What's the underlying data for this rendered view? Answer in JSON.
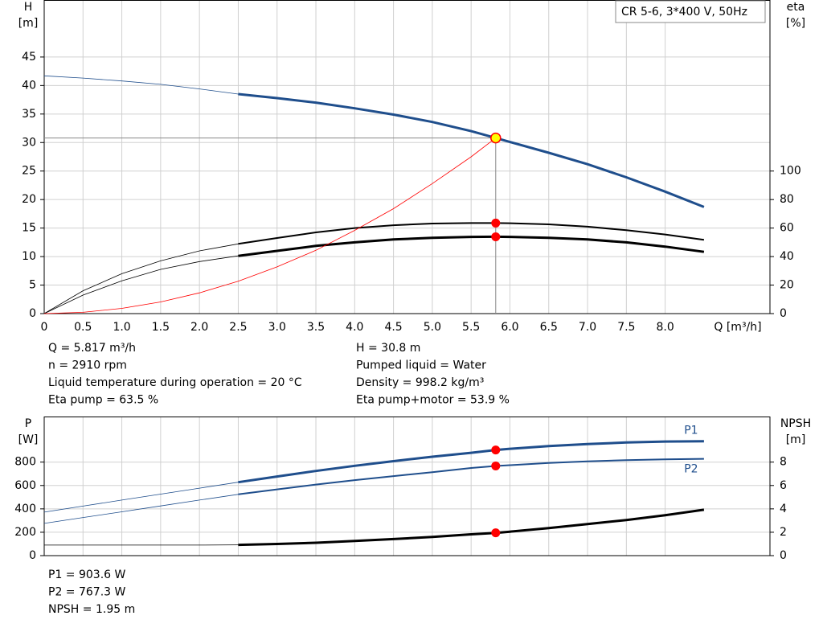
{
  "chart_data": [
    {
      "type": "line",
      "title": "CR 5-6, 3*400 V, 50Hz",
      "ylabel": "H",
      "yunit": "[m]",
      "y2label": "eta",
      "y2unit": "[%]",
      "xlabel": "Q [m³/h]",
      "x": [
        0,
        0.5,
        1.0,
        1.5,
        2.0,
        2.5,
        3.0,
        3.5,
        4.0,
        4.5,
        5.0,
        5.5,
        5.817,
        6.0,
        6.5,
        7.0,
        7.5,
        8.0,
        8.5
      ],
      "xlim": [
        0,
        9.35
      ],
      "xticks": [
        0,
        0.5,
        {
          "value": 1,
          "label": "1.0"
        },
        1.5,
        {
          "value": 2,
          "label": "2.0"
        },
        2.5,
        {
          "value": 3,
          "label": "3.0"
        },
        3.5,
        {
          "value": 4,
          "label": "4.0"
        },
        4.5,
        {
          "value": 5,
          "label": "5.0"
        },
        5.5,
        {
          "value": 6,
          "label": "6.0"
        },
        6.5,
        {
          "value": 7,
          "label": "7.0"
        },
        7.5,
        {
          "value": 8,
          "label": "8.0"
        }
      ],
      "ylim": [
        0,
        55
      ],
      "yticks": [
        0,
        5,
        10,
        15,
        20,
        25,
        30,
        35,
        40,
        45
      ],
      "y2lim": [
        0,
        220
      ],
      "y2ticks": [
        0,
        20,
        40,
        60,
        80,
        100
      ],
      "grid": true,
      "thin_below_x": 2.5,
      "operating_point": {
        "x": 5.817,
        "y": 30.8
      },
      "series": [
        {
          "color": "#1f4e8c",
          "width": 3,
          "marker": false,
          "axis": "y",
          "values": [
            41.7,
            41.3,
            40.8,
            40.2,
            39.4,
            38.5,
            37.8,
            37.0,
            36.0,
            34.9,
            33.6,
            32.0,
            30.8,
            30.1,
            28.2,
            26.2,
            23.9,
            21.4,
            18.7
          ]
        },
        {
          "color": "#000000",
          "width": 2,
          "marker": true,
          "axis": "y2",
          "values": [
            0,
            16,
            28,
            37,
            44,
            48.9,
            53,
            57,
            60,
            62,
            63.2,
            63.5,
            63.5,
            63.4,
            62.6,
            61,
            58.5,
            55.5,
            51.8
          ]
        },
        {
          "color": "#000000",
          "width": 3,
          "marker": true,
          "axis": "y2",
          "values": [
            0,
            13,
            23,
            31,
            36.5,
            40.5,
            44,
            47.5,
            50,
            52,
            53.2,
            53.8,
            53.9,
            53.8,
            53.2,
            52,
            50,
            47,
            43.3
          ]
        },
        {
          "color": "#ff0000",
          "width": 0.8,
          "marker": false,
          "axis": "y",
          "thin_all": true,
          "values": [
            0,
            0.23,
            0.91,
            2.05,
            3.64,
            5.69,
            8.19,
            11.1,
            14.6,
            18.4,
            22.8,
            27.5,
            30.8,
            null,
            null,
            null,
            null,
            null,
            null
          ]
        }
      ],
      "info": [
        "Q = 5.817 m³/h",
        "n = 2910 rpm",
        "Liquid temperature during operation = 20 °C",
        "Eta pump = 63.5 %",
        "H = 30.8 m",
        "Pumped liquid = Water",
        "Density = 998.2 kg/m³",
        "Eta pump+motor = 53.9 %"
      ]
    },
    {
      "type": "line",
      "ylabel": "P",
      "yunit": "[W]",
      "y2label": "NPSH",
      "y2unit": "[m]",
      "x": [
        0,
        0.5,
        1.0,
        1.5,
        2.0,
        2.5,
        3.0,
        3.5,
        4.0,
        4.5,
        5.0,
        5.5,
        5.817,
        6.0,
        6.5,
        7.0,
        7.5,
        8.0,
        8.5
      ],
      "xlim": [
        0,
        9.35
      ],
      "xticks": [
        0,
        0.5,
        1,
        1.5,
        2,
        2.5,
        3,
        3.5,
        4,
        4.5,
        5,
        5.5,
        6,
        6.5,
        7,
        7.5,
        8
      ],
      "ylim": [
        0,
        1190
      ],
      "yticks": [
        0,
        200,
        400,
        600,
        800
      ],
      "y2lim": [
        0,
        11.9
      ],
      "y2ticks": [
        0,
        2,
        4,
        6,
        8
      ],
      "grid": true,
      "thin_below_x": 2.5,
      "operating_point": {
        "x": 5.817
      },
      "series": [
        {
          "name": "P1",
          "color": "#1f4e8c",
          "width": 3,
          "marker": true,
          "axis": "y",
          "label_side": "above",
          "values": [
            372,
            424,
            475,
            526,
            577,
            628,
            677,
            724,
            768,
            808,
            846,
            880,
            903.6,
            914,
            937,
            955,
            968,
            976,
            979
          ]
        },
        {
          "name": "P2",
          "color": "#1f4e8c",
          "width": 2,
          "marker": true,
          "axis": "y",
          "label_side": "below",
          "values": [
            276,
            326,
            375,
            425,
            475,
            524,
            567,
            608,
            646,
            680,
            713,
            750,
            767.3,
            774,
            793,
            807,
            817,
            824,
            828
          ]
        },
        {
          "color": "#000000",
          "width": 3,
          "marker": true,
          "axis": "y2",
          "values": [
            0.9,
            0.9,
            0.9,
            0.9,
            0.9,
            0.92,
            1.0,
            1.1,
            1.25,
            1.42,
            1.6,
            1.82,
            1.95,
            2.05,
            2.35,
            2.7,
            3.05,
            3.45,
            3.93
          ]
        }
      ],
      "info": [
        "P1 = 903.6 W",
        "P2 = 767.3 W",
        "NPSH = 1.95 m"
      ]
    }
  ]
}
